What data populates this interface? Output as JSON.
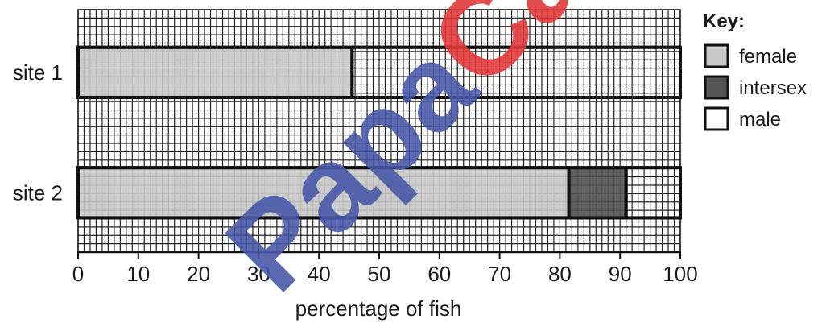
{
  "chart_data": {
    "type": "bar",
    "orientation": "horizontal",
    "stacked": true,
    "categories": [
      "site 1",
      "site 2"
    ],
    "series": [
      {
        "name": "female",
        "values": [
          45.5,
          81.5
        ],
        "color": "#c8c8c8"
      },
      {
        "name": "intersex",
        "values": [
          0,
          9.5
        ],
        "color": "#555555"
      },
      {
        "name": "male",
        "values": [
          54.5,
          9.0
        ],
        "color": "#ffffff"
      }
    ],
    "xlabel": "percentage of fish",
    "xlim": [
      0,
      100
    ],
    "xticks": [
      "0",
      "10",
      "20",
      "30",
      "40",
      "50",
      "60",
      "70",
      "80",
      "90",
      "100"
    ],
    "grid": true,
    "legend": {
      "title": "Key:",
      "placement": "right"
    }
  },
  "watermark": {
    "text_part1": "Papa",
    "text_part2": "Camb",
    "color1": "#4a5aa8",
    "color2": "#e23a3a"
  }
}
